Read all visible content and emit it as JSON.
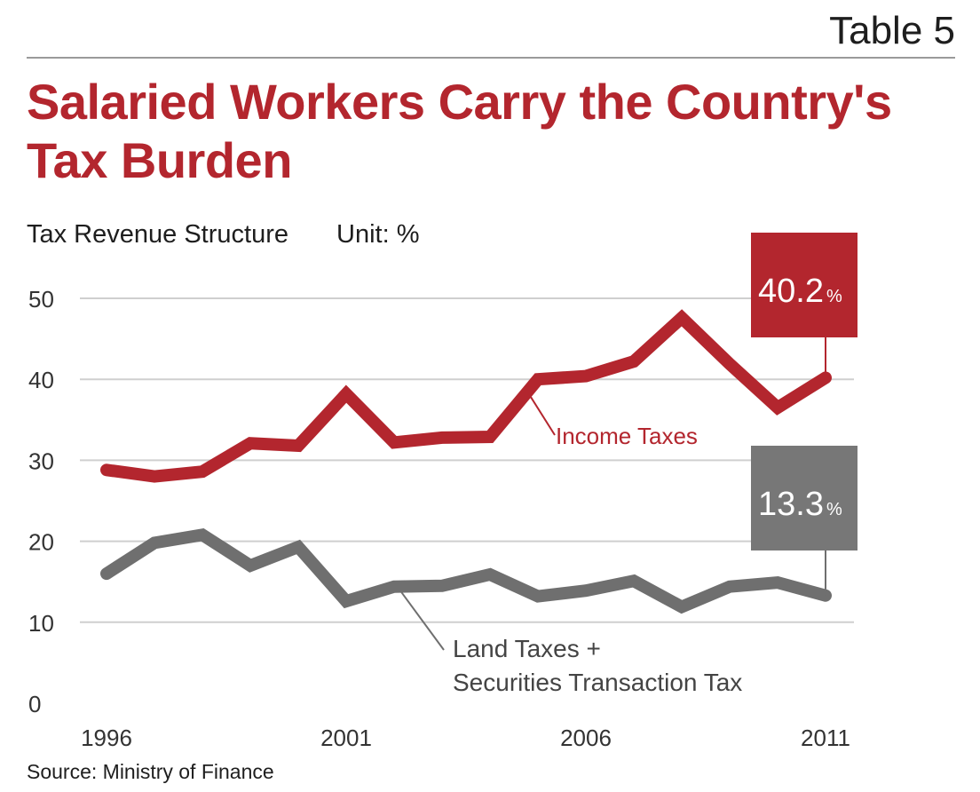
{
  "header": {
    "table_label": "Table 5",
    "title": "Salaried Workers Carry the Country's Tax Burden",
    "subtitle": "Tax Revenue Structure",
    "unit": "Unit: %"
  },
  "footer": {
    "source": "Source: Ministry of Finance"
  },
  "colors": {
    "income": "#b3262e",
    "land": "#6f6f6f",
    "callout_income": "#b3262e",
    "callout_land": "#777777",
    "grid": "#cfcfcf"
  },
  "chart_data": {
    "type": "line",
    "title": "Salaried Workers Carry the Country's Tax Burden",
    "ylabel": "",
    "xlabel": "",
    "ylim": [
      0,
      50
    ],
    "y_ticks": [
      0,
      10,
      20,
      30,
      40,
      50
    ],
    "x_ticks": [
      "1996",
      "2001",
      "2006",
      "2011"
    ],
    "grid": "horizontal",
    "x": [
      1996,
      1997,
      1998,
      1999,
      2000,
      2001,
      2002,
      2003,
      2004,
      2005,
      2006,
      2007,
      2008,
      2009,
      2010,
      2011
    ],
    "series": [
      {
        "name": "Income Taxes",
        "values": [
          28.8,
          28.0,
          28.6,
          32.1,
          31.8,
          38.2,
          32.2,
          32.8,
          32.9,
          40.0,
          40.4,
          42.2,
          47.6,
          41.9,
          36.5,
          40.2
        ]
      },
      {
        "name": "Land Taxes + Securities Transaction Tax",
        "values": [
          16.0,
          19.8,
          20.8,
          17.0,
          19.3,
          12.6,
          14.4,
          14.5,
          15.9,
          13.2,
          13.9,
          15.1,
          11.9,
          14.4,
          14.9,
          13.3
        ]
      }
    ],
    "annotations": [
      {
        "series": 0,
        "value_label": "40.2",
        "unit": "%"
      },
      {
        "series": 1,
        "value_label": "13.3",
        "unit": "%"
      }
    ],
    "series_labels": [
      {
        "series": 0,
        "lines": [
          "Income Taxes"
        ]
      },
      {
        "series": 1,
        "lines": [
          "Land Taxes +",
          "Securities Transaction Tax"
        ]
      }
    ]
  }
}
